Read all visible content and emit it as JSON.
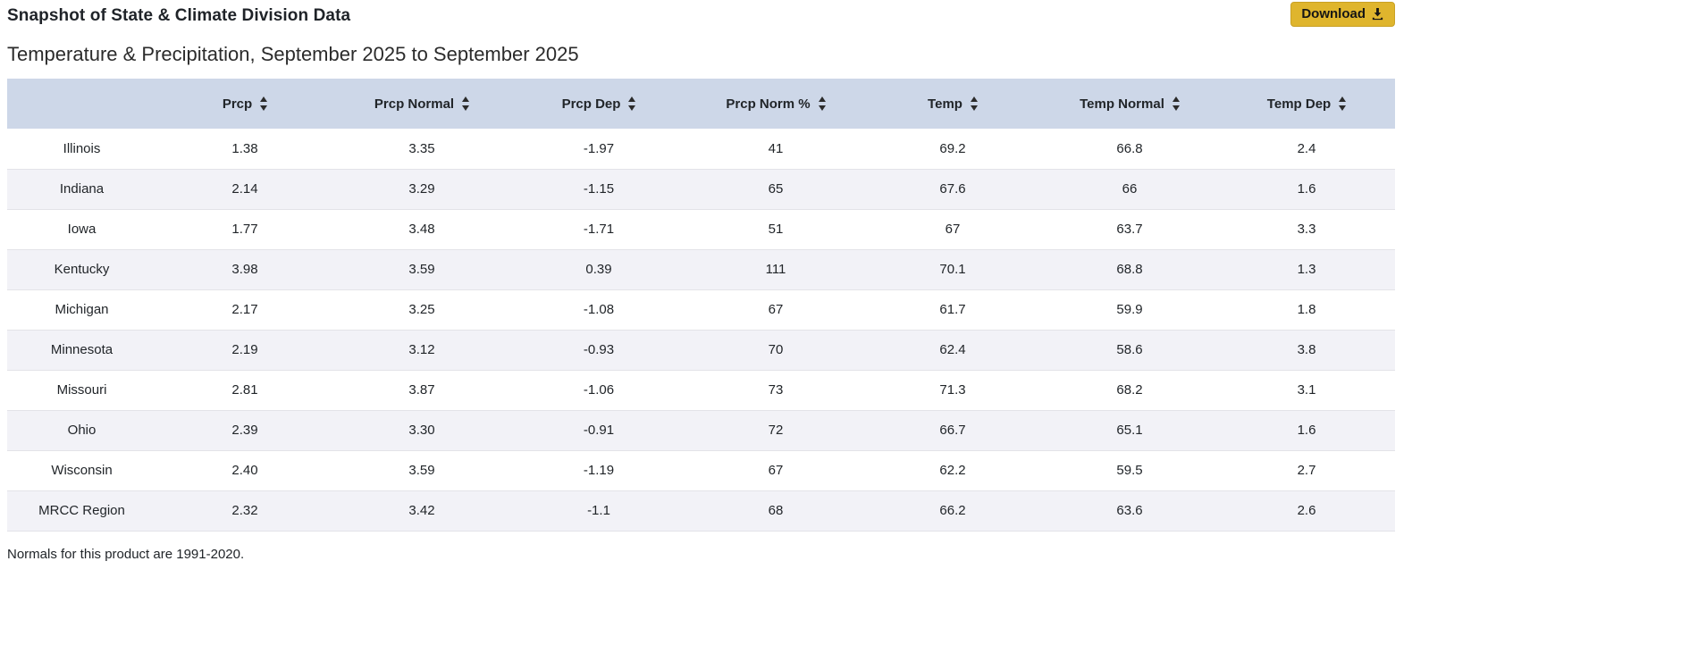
{
  "page": {
    "title": "Snapshot of State & Climate Division Data",
    "subtitle": "Temperature & Precipitation, September 2025 to September 2025",
    "download_label": "Download",
    "footer_note": "Normals for this product are 1991-2020."
  },
  "colors": {
    "header_bg": "#cdd7e8",
    "row_alt_bg": "#f2f2f7",
    "button_bg": "#dfb52d",
    "text": "#212529"
  },
  "chart_data": {
    "type": "table",
    "columns": [
      "",
      "Prcp",
      "Prcp Normal",
      "Prcp Dep",
      "Prcp Norm %",
      "Temp",
      "Temp Normal",
      "Temp Dep"
    ],
    "rows": [
      [
        "Illinois",
        "1.38",
        "3.35",
        "-1.97",
        "41",
        "69.2",
        "66.8",
        "2.4"
      ],
      [
        "Indiana",
        "2.14",
        "3.29",
        "-1.15",
        "65",
        "67.6",
        "66",
        "1.6"
      ],
      [
        "Iowa",
        "1.77",
        "3.48",
        "-1.71",
        "51",
        "67",
        "63.7",
        "3.3"
      ],
      [
        "Kentucky",
        "3.98",
        "3.59",
        "0.39",
        "111",
        "70.1",
        "68.8",
        "1.3"
      ],
      [
        "Michigan",
        "2.17",
        "3.25",
        "-1.08",
        "67",
        "61.7",
        "59.9",
        "1.8"
      ],
      [
        "Minnesota",
        "2.19",
        "3.12",
        "-0.93",
        "70",
        "62.4",
        "58.6",
        "3.8"
      ],
      [
        "Missouri",
        "2.81",
        "3.87",
        "-1.06",
        "73",
        "71.3",
        "68.2",
        "3.1"
      ],
      [
        "Ohio",
        "2.39",
        "3.30",
        "-0.91",
        "72",
        "66.7",
        "65.1",
        "1.6"
      ],
      [
        "Wisconsin",
        "2.40",
        "3.59",
        "-1.19",
        "67",
        "62.2",
        "59.5",
        "2.7"
      ],
      [
        "MRCC Region",
        "2.32",
        "3.42",
        "-1.1",
        "68",
        "66.2",
        "63.6",
        "2.6"
      ]
    ]
  }
}
